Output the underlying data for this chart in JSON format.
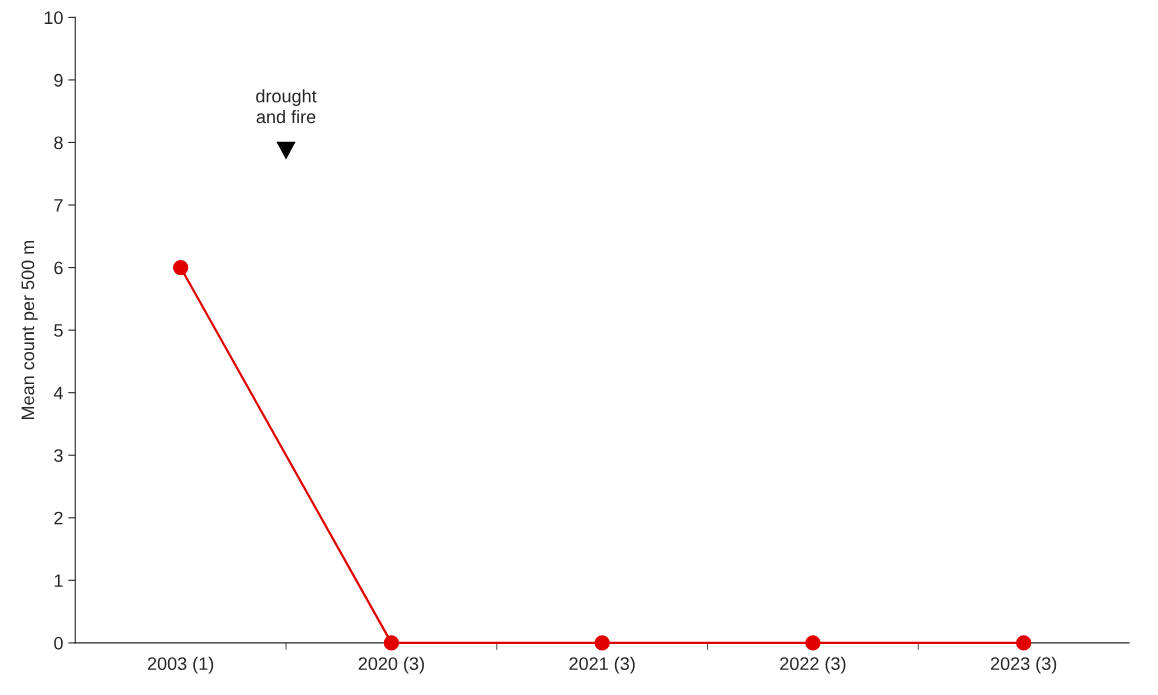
{
  "chart_data": {
    "type": "line",
    "ylabel": "Mean count per 500 m",
    "categories": [
      "2003 (1)",
      "2020 (3)",
      "2021 (3)",
      "2022 (3)",
      "2023 (3)"
    ],
    "series": [
      {
        "color": "#e00000",
        "values": [
          6,
          0,
          0,
          0,
          0
        ]
      }
    ],
    "ylim": [
      0,
      10
    ],
    "yticks": [
      0,
      1,
      2,
      3,
      4,
      5,
      6,
      7,
      8,
      9,
      10
    ],
    "annotations": [
      "drought\nand fire"
    ],
    "grid": false,
    "legend": false,
    "marker": "circle",
    "line_style": "solid"
  }
}
